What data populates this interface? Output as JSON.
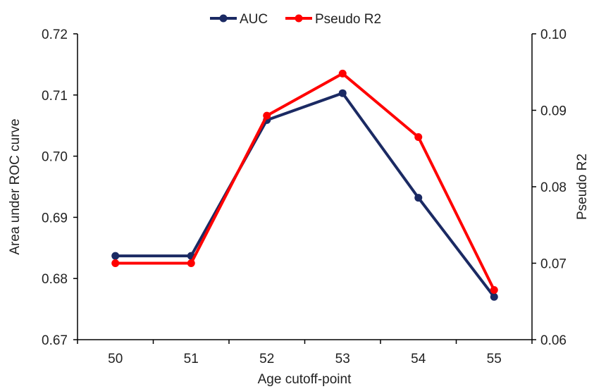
{
  "chart_data": {
    "type": "line",
    "categories": [
      "50",
      "51",
      "52",
      "53",
      "54",
      "55"
    ],
    "xlabel": "Age cutoff-point",
    "ylabel": "Area under ROC curve",
    "y2label": "Pseudo R2",
    "ylim": [
      0.67,
      0.72
    ],
    "y_ticks": [
      "0.67",
      "0.68",
      "0.69",
      "0.70",
      "0.71",
      "0.72"
    ],
    "y2lim": [
      0.06,
      0.1
    ],
    "y2_ticks": [
      "0.06",
      "0.07",
      "0.08",
      "0.09",
      "0.10"
    ],
    "grid": false,
    "legend_position": "top-center",
    "series": [
      {
        "name": "AUC",
        "axis": "left",
        "color": "#1b2a63",
        "values": [
          0.6837,
          0.6837,
          0.7059,
          0.7103,
          0.6932,
          0.677
        ]
      },
      {
        "name": "Pseudo R2",
        "axis": "right",
        "color": "#ff0000",
        "values": [
          0.07,
          0.07,
          0.0893,
          0.0948,
          0.0865,
          0.0665
        ]
      }
    ]
  }
}
